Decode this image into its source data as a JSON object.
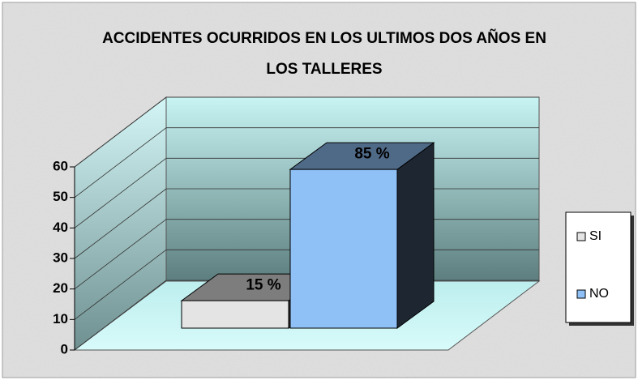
{
  "chart_data": {
    "type": "bar3d",
    "title": "ACCIDENTES OCURRIDOS EN LOS ULTIMOS DOS AÑOS EN LOS TALLERES",
    "categories": [
      "SI",
      "NO"
    ],
    "values": [
      9,
      52
    ],
    "value_labels": [
      "15 %",
      "85 %"
    ],
    "colors": [
      "#e4e4e4",
      "#8fc0f6"
    ],
    "ylim": [
      0,
      60
    ],
    "yticks": [
      0,
      10,
      20,
      30,
      40,
      50,
      60
    ],
    "grid": true,
    "legend": "right"
  }
}
